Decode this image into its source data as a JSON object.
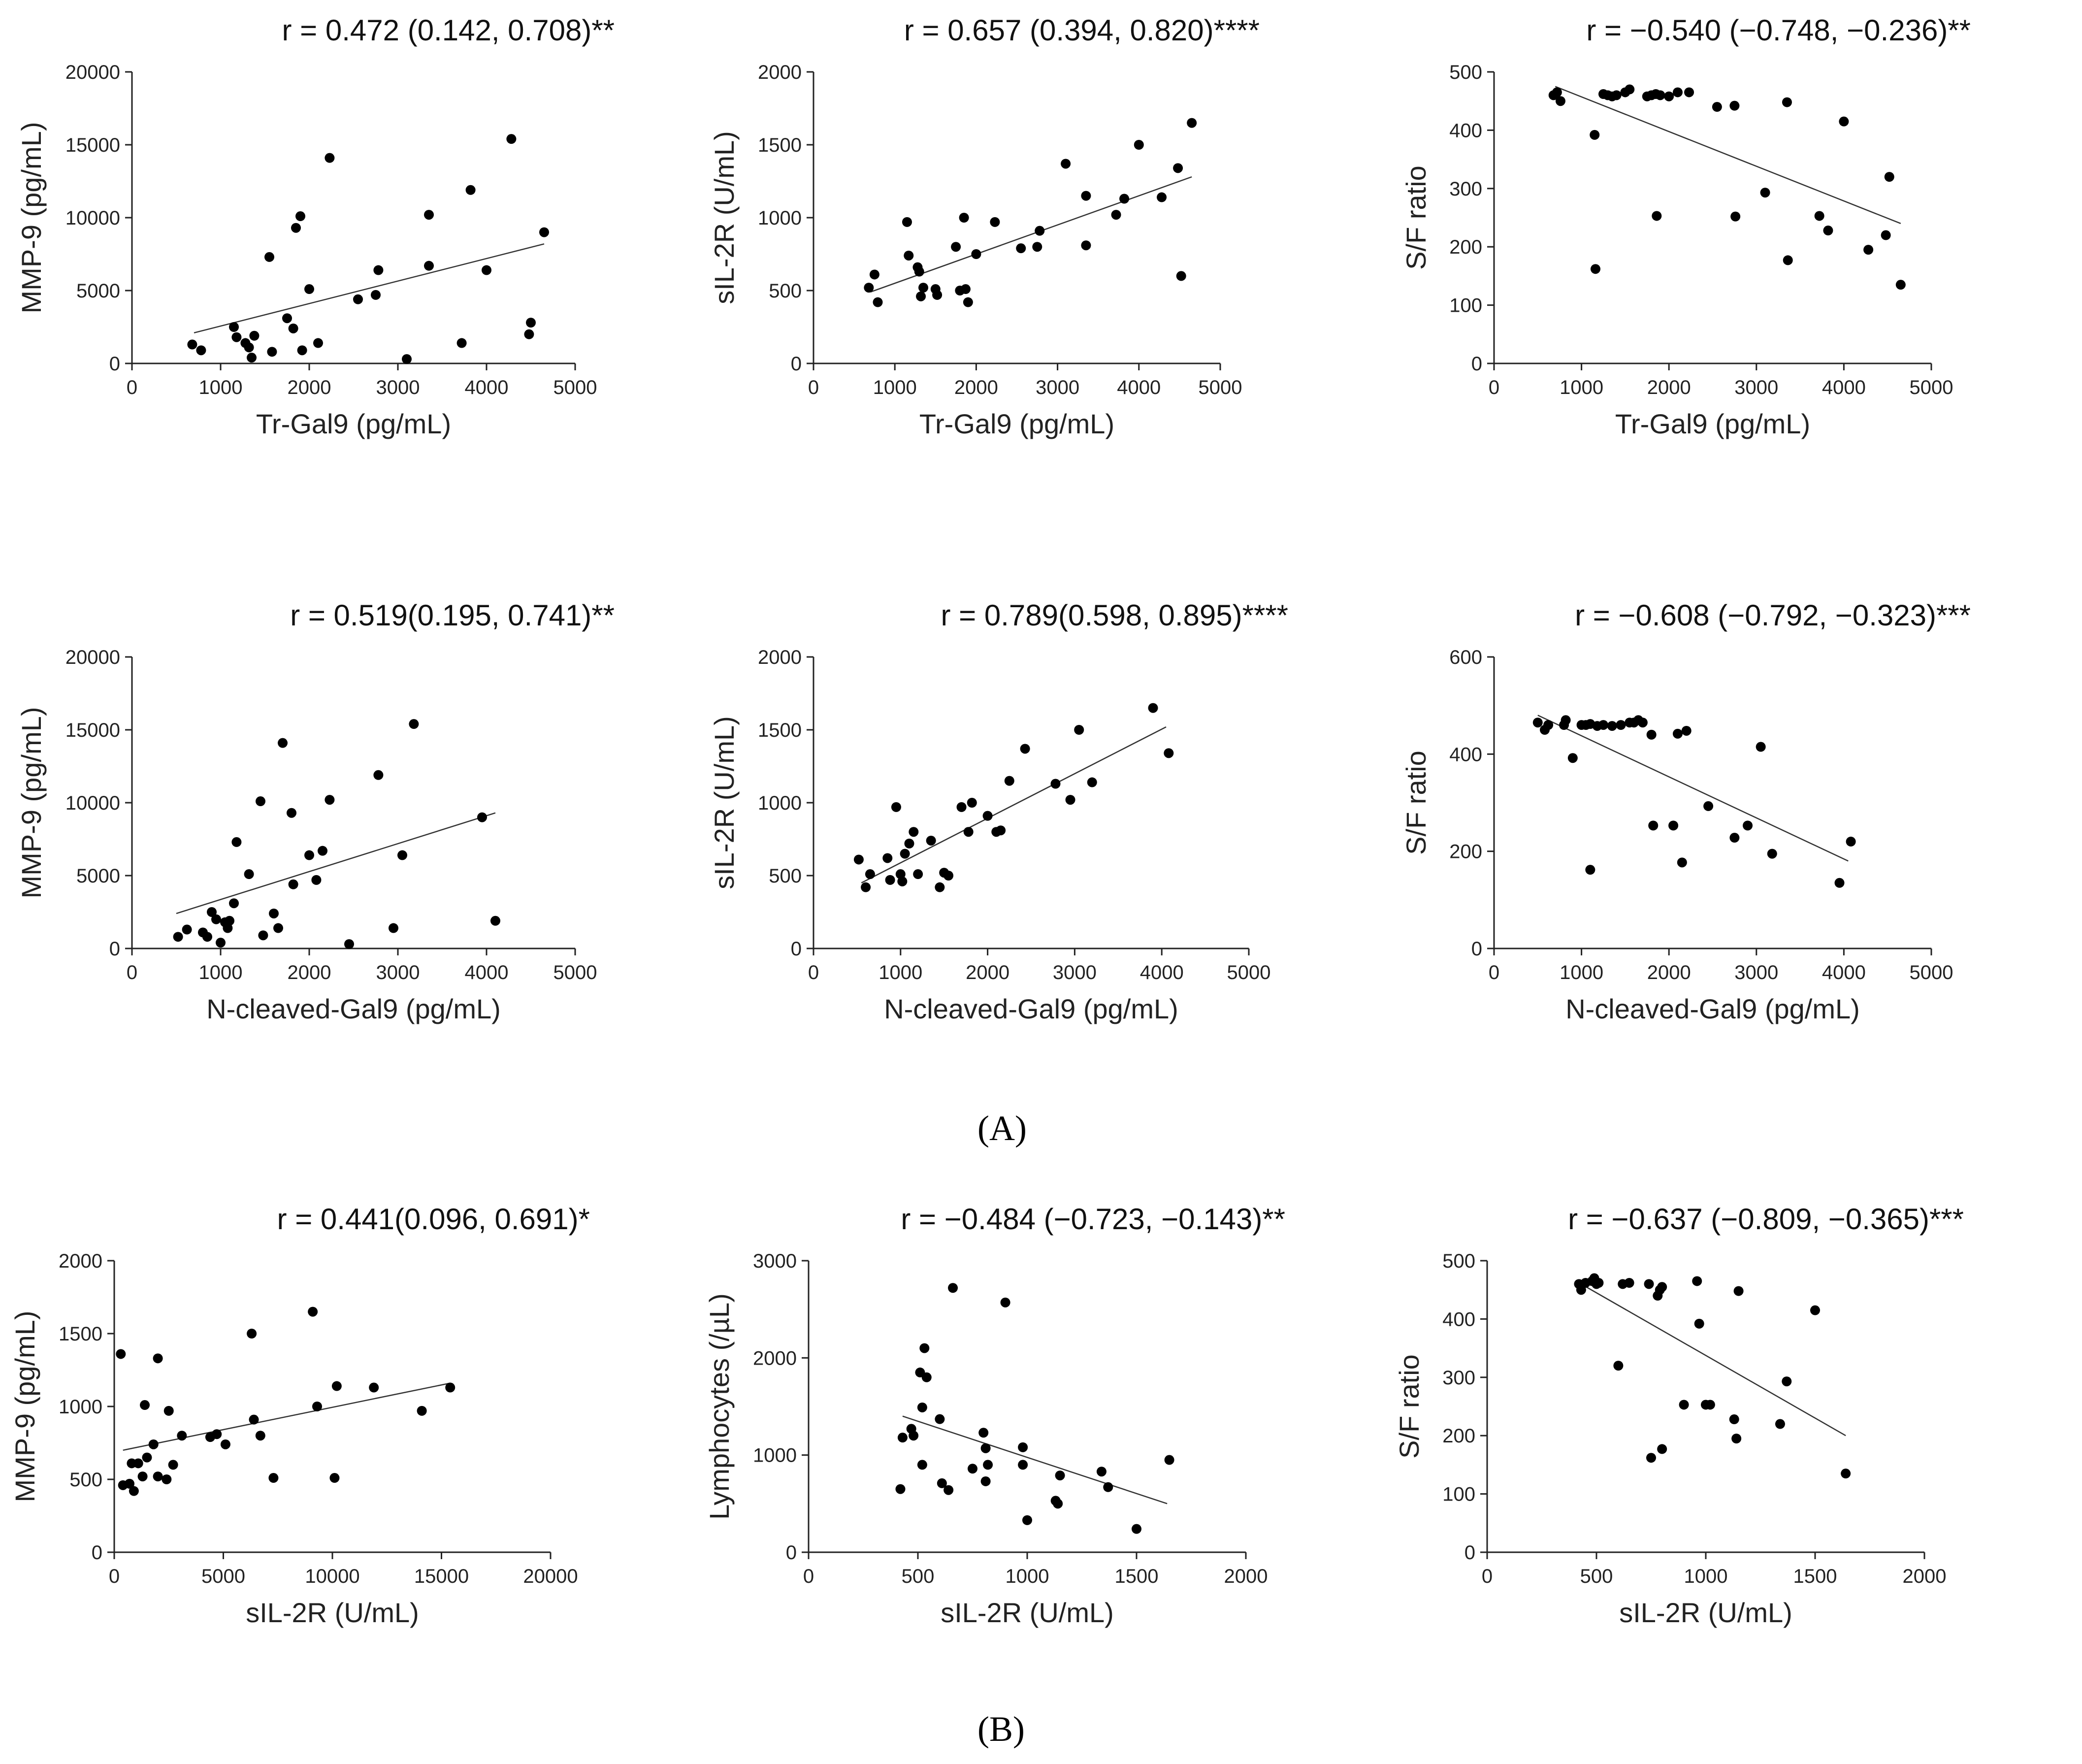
{
  "panel_labels": {
    "a": "(A)",
    "b": "(B)"
  },
  "chart_data": [
    {
      "id": "a1",
      "type": "scatter",
      "title": "r = 0.472 (0.142, 0.708)**",
      "xlabel": "Tr-Gal9 (pg/mL)",
      "ylabel": "MMP-9 (pg/mL)",
      "xlim": [
        0,
        5000
      ],
      "ylim": [
        0,
        20000
      ],
      "xticks": [
        0,
        1000,
        2000,
        3000,
        4000,
        5000
      ],
      "yticks": [
        0,
        5000,
        10000,
        15000,
        20000
      ],
      "fit": [
        [
          700,
          2100
        ],
        [
          4650,
          8200
        ]
      ],
      "points": [
        [
          680,
          1300
        ],
        [
          780,
          900
        ],
        [
          1150,
          2500
        ],
        [
          1180,
          1800
        ],
        [
          1280,
          1400
        ],
        [
          1320,
          1100
        ],
        [
          1350,
          400
        ],
        [
          1380,
          1900
        ],
        [
          1550,
          7300
        ],
        [
          1580,
          800
        ],
        [
          1750,
          3100
        ],
        [
          1820,
          2400
        ],
        [
          1850,
          9300
        ],
        [
          1900,
          10100
        ],
        [
          1920,
          900
        ],
        [
          2000,
          5100
        ],
        [
          2100,
          1400
        ],
        [
          2230,
          14100
        ],
        [
          2550,
          4400
        ],
        [
          2750,
          4700
        ],
        [
          2780,
          6400
        ],
        [
          3100,
          300
        ],
        [
          3350,
          10200
        ],
        [
          3350,
          6700
        ],
        [
          3720,
          1400
        ],
        [
          3820,
          11900
        ],
        [
          4000,
          6400
        ],
        [
          4280,
          15400
        ],
        [
          4480,
          2000
        ],
        [
          4500,
          2800
        ],
        [
          4650,
          9000
        ]
      ]
    },
    {
      "id": "a2",
      "type": "scatter",
      "title": "r = 0.657 (0.394, 0.820)****",
      "xlabel": "Tr-Gal9 (pg/mL)",
      "ylabel": "sIL-2R (U/mL)",
      "xlim": [
        0,
        5000
      ],
      "ylim": [
        0,
        2000
      ],
      "xticks": [
        0,
        1000,
        2000,
        3000,
        4000,
        5000
      ],
      "yticks": [
        0,
        500,
        1000,
        1500,
        2000
      ],
      "fit": [
        [
          700,
          490
        ],
        [
          4650,
          1280
        ]
      ],
      "points": [
        [
          680,
          520
        ],
        [
          750,
          610
        ],
        [
          790,
          420
        ],
        [
          1150,
          970
        ],
        [
          1170,
          740
        ],
        [
          1280,
          660
        ],
        [
          1300,
          630
        ],
        [
          1320,
          460
        ],
        [
          1350,
          520
        ],
        [
          1500,
          510
        ],
        [
          1520,
          470
        ],
        [
          1750,
          800
        ],
        [
          1800,
          500
        ],
        [
          1850,
          1000
        ],
        [
          1870,
          510
        ],
        [
          1900,
          420
        ],
        [
          2000,
          750
        ],
        [
          2230,
          970
        ],
        [
          2550,
          790
        ],
        [
          2750,
          800
        ],
        [
          2780,
          910
        ],
        [
          3100,
          1370
        ],
        [
          3350,
          810
        ],
        [
          3350,
          1150
        ],
        [
          3720,
          1020
        ],
        [
          3820,
          1130
        ],
        [
          4000,
          1500
        ],
        [
          4280,
          1140
        ],
        [
          4480,
          1340
        ],
        [
          4520,
          600
        ],
        [
          4650,
          1650
        ]
      ]
    },
    {
      "id": "a3",
      "type": "scatter",
      "title": "r = −0.540 (−0.748, −0.236)**",
      "xlabel": "Tr-Gal9 (pg/mL)",
      "ylabel": "S/F ratio",
      "xlim": [
        0,
        5000
      ],
      "ylim": [
        0,
        500
      ],
      "xticks": [
        0,
        1000,
        2000,
        3000,
        4000,
        5000
      ],
      "yticks": [
        0,
        100,
        200,
        300,
        400,
        500
      ],
      "fit": [
        [
          700,
          475
        ],
        [
          4650,
          240
        ]
      ],
      "points": [
        [
          680,
          460
        ],
        [
          720,
          465
        ],
        [
          760,
          450
        ],
        [
          1150,
          392
        ],
        [
          1160,
          162
        ],
        [
          1250,
          462
        ],
        [
          1300,
          460
        ],
        [
          1350,
          458
        ],
        [
          1400,
          460
        ],
        [
          1500,
          465
        ],
        [
          1550,
          470
        ],
        [
          1750,
          458
        ],
        [
          1800,
          460
        ],
        [
          1850,
          462
        ],
        [
          1860,
          253
        ],
        [
          1900,
          460
        ],
        [
          2000,
          458
        ],
        [
          2100,
          465
        ],
        [
          2230,
          465
        ],
        [
          2550,
          440
        ],
        [
          2750,
          442
        ],
        [
          2760,
          252
        ],
        [
          3100,
          293
        ],
        [
          3350,
          448
        ],
        [
          3360,
          177
        ],
        [
          3720,
          253
        ],
        [
          3820,
          228
        ],
        [
          4000,
          415
        ],
        [
          4280,
          195
        ],
        [
          4480,
          220
        ],
        [
          4520,
          320
        ],
        [
          4650,
          135
        ]
      ]
    },
    {
      "id": "a4",
      "type": "scatter",
      "title": "r = 0.519(0.195, 0.741)**",
      "xlabel": "N-cleaved-Gal9 (pg/mL)",
      "ylabel": "MMP-9 (pg/mL)",
      "xlim": [
        0,
        5000
      ],
      "ylim": [
        0,
        20000
      ],
      "xticks": [
        0,
        1000,
        2000,
        3000,
        4000,
        5000
      ],
      "yticks": [
        0,
        5000,
        10000,
        15000,
        20000
      ],
      "fit": [
        [
          500,
          2400
        ],
        [
          4100,
          9300
        ]
      ],
      "points": [
        [
          520,
          800
        ],
        [
          620,
          1300
        ],
        [
          800,
          1100
        ],
        [
          850,
          800
        ],
        [
          900,
          2500
        ],
        [
          950,
          2000
        ],
        [
          1000,
          400
        ],
        [
          1050,
          1800
        ],
        [
          1080,
          1400
        ],
        [
          1100,
          1900
        ],
        [
          1150,
          3100
        ],
        [
          1180,
          7300
        ],
        [
          1320,
          5100
        ],
        [
          1450,
          10100
        ],
        [
          1480,
          900
        ],
        [
          1600,
          2400
        ],
        [
          1650,
          1400
        ],
        [
          1700,
          14100
        ],
        [
          1800,
          9300
        ],
        [
          1820,
          4400
        ],
        [
          2000,
          6400
        ],
        [
          2080,
          4700
        ],
        [
          2150,
          6700
        ],
        [
          2230,
          10200
        ],
        [
          2450,
          300
        ],
        [
          2780,
          11900
        ],
        [
          2950,
          1400
        ],
        [
          3050,
          6400
        ],
        [
          3180,
          15400
        ],
        [
          3950,
          9000
        ],
        [
          4100,
          1900
        ]
      ]
    },
    {
      "id": "a5",
      "type": "scatter",
      "title": "r = 0.789(0.598, 0.895)****",
      "xlabel": "N-cleaved-Gal9 (pg/mL)",
      "ylabel": "sIL-2R (U/mL)",
      "xlim": [
        0,
        5000
      ],
      "ylim": [
        0,
        2000
      ],
      "xticks": [
        0,
        1000,
        2000,
        3000,
        4000,
        5000
      ],
      "yticks": [
        0,
        500,
        1000,
        1500,
        2000
      ],
      "fit": [
        [
          550,
          450
        ],
        [
          4050,
          1520
        ]
      ],
      "points": [
        [
          520,
          610
        ],
        [
          600,
          420
        ],
        [
          650,
          510
        ],
        [
          850,
          620
        ],
        [
          880,
          470
        ],
        [
          950,
          970
        ],
        [
          1000,
          510
        ],
        [
          1020,
          460
        ],
        [
          1050,
          650
        ],
        [
          1100,
          720
        ],
        [
          1150,
          800
        ],
        [
          1200,
          510
        ],
        [
          1350,
          740
        ],
        [
          1450,
          420
        ],
        [
          1500,
          520
        ],
        [
          1550,
          500
        ],
        [
          1700,
          970
        ],
        [
          1780,
          800
        ],
        [
          1820,
          1000
        ],
        [
          2000,
          910
        ],
        [
          2100,
          800
        ],
        [
          2150,
          810
        ],
        [
          2250,
          1150
        ],
        [
          2430,
          1370
        ],
        [
          2780,
          1130
        ],
        [
          2950,
          1020
        ],
        [
          3050,
          1500
        ],
        [
          3200,
          1140
        ],
        [
          3900,
          1650
        ],
        [
          4080,
          1340
        ]
      ]
    },
    {
      "id": "a6",
      "type": "scatter",
      "title": "r = −0.608 (−0.792, −0.323)***",
      "xlabel": "N-cleaved-Gal9 (pg/mL)",
      "ylabel": "S/F ratio",
      "xlim": [
        0,
        5000
      ],
      "ylim": [
        0,
        600
      ],
      "xticks": [
        0,
        1000,
        2000,
        3000,
        4000,
        5000
      ],
      "yticks": [
        0,
        200,
        400,
        600
      ],
      "fit": [
        [
          500,
          480
        ],
        [
          4050,
          180
        ]
      ],
      "points": [
        [
          500,
          465
        ],
        [
          580,
          450
        ],
        [
          620,
          460
        ],
        [
          800,
          460
        ],
        [
          820,
          470
        ],
        [
          900,
          392
        ],
        [
          1000,
          460
        ],
        [
          1050,
          460
        ],
        [
          1100,
          462
        ],
        [
          1100,
          162
        ],
        [
          1180,
          458
        ],
        [
          1250,
          460
        ],
        [
          1350,
          458
        ],
        [
          1450,
          460
        ],
        [
          1550,
          465
        ],
        [
          1600,
          465
        ],
        [
          1650,
          470
        ],
        [
          1700,
          465
        ],
        [
          1800,
          440
        ],
        [
          1820,
          253
        ],
        [
          2050,
          253
        ],
        [
          2100,
          442
        ],
        [
          2150,
          177
        ],
        [
          2200,
          448
        ],
        [
          2450,
          293
        ],
        [
          2750,
          228
        ],
        [
          2900,
          253
        ],
        [
          3050,
          415
        ],
        [
          3180,
          195
        ],
        [
          3950,
          135
        ],
        [
          4080,
          220
        ]
      ]
    },
    {
      "id": "b1",
      "type": "scatter",
      "title": "r = 0.441(0.096, 0.691)*",
      "xlabel": "sIL-2R (U/mL)",
      "ylabel": "MMP-9 (pg/mL)",
      "xlim": [
        0,
        20000
      ],
      "ylim": [
        0,
        2000
      ],
      "xticks": [
        0,
        5000,
        10000,
        15000,
        20000
      ],
      "yticks": [
        0,
        500,
        1000,
        1500,
        2000
      ],
      "fit": [
        [
          400,
          700
        ],
        [
          15400,
          1160
        ]
      ],
      "points": [
        [
          300,
          1360
        ],
        [
          400,
          460
        ],
        [
          700,
          470
        ],
        [
          800,
          610
        ],
        [
          900,
          420
        ],
        [
          1100,
          610
        ],
        [
          1300,
          520
        ],
        [
          1400,
          1010
        ],
        [
          1500,
          650
        ],
        [
          1800,
          740
        ],
        [
          2000,
          1330
        ],
        [
          2000,
          520
        ],
        [
          2400,
          500
        ],
        [
          2500,
          970
        ],
        [
          2700,
          600
        ],
        [
          3100,
          800
        ],
        [
          4400,
          790
        ],
        [
          4700,
          810
        ],
        [
          5100,
          740
        ],
        [
          6300,
          1500
        ],
        [
          6400,
          910
        ],
        [
          6700,
          800
        ],
        [
          7300,
          510
        ],
        [
          9100,
          1650
        ],
        [
          9300,
          1000
        ],
        [
          10100,
          510
        ],
        [
          10200,
          1140
        ],
        [
          11900,
          1130
        ],
        [
          14100,
          970
        ],
        [
          15400,
          1130
        ]
      ]
    },
    {
      "id": "b2",
      "type": "scatter",
      "title": "r = −0.484 (−0.723, −0.143)**",
      "xlabel": "sIL-2R (U/mL)",
      "ylabel": "Lymphocytes (/µL)",
      "xlim": [
        0,
        2000
      ],
      "ylim": [
        0,
        3000
      ],
      "xticks": [
        0,
        500,
        1000,
        1500,
        2000
      ],
      "yticks": [
        0,
        1000,
        2000,
        3000
      ],
      "fit": [
        [
          430,
          1400
        ],
        [
          1640,
          500
        ]
      ],
      "points": [
        [
          420,
          650
        ],
        [
          430,
          1180
        ],
        [
          470,
          1270
        ],
        [
          480,
          1200
        ],
        [
          510,
          1850
        ],
        [
          520,
          900
        ],
        [
          520,
          1490
        ],
        [
          530,
          2100
        ],
        [
          540,
          1800
        ],
        [
          600,
          1370
        ],
        [
          610,
          710
        ],
        [
          640,
          640
        ],
        [
          660,
          2720
        ],
        [
          750,
          860
        ],
        [
          800,
          1230
        ],
        [
          810,
          730
        ],
        [
          810,
          1070
        ],
        [
          820,
          900
        ],
        [
          900,
          2570
        ],
        [
          980,
          900
        ],
        [
          980,
          1080
        ],
        [
          1000,
          330
        ],
        [
          1130,
          530
        ],
        [
          1140,
          500
        ],
        [
          1150,
          790
        ],
        [
          1340,
          830
        ],
        [
          1370,
          670
        ],
        [
          1500,
          240
        ],
        [
          1650,
          950
        ]
      ]
    },
    {
      "id": "b3",
      "type": "scatter",
      "title": "r = −0.637 (−0.809, −0.365)***",
      "xlabel": "sIL-2R (U/mL)",
      "ylabel": "S/F ratio",
      "xlim": [
        0,
        2000
      ],
      "ylim": [
        0,
        500
      ],
      "xticks": [
        0,
        500,
        1000,
        1500,
        2000
      ],
      "yticks": [
        0,
        100,
        200,
        300,
        400,
        500
      ],
      "fit": [
        [
          430,
          460
        ],
        [
          1640,
          200
        ]
      ],
      "points": [
        [
          420,
          460
        ],
        [
          430,
          450
        ],
        [
          450,
          462
        ],
        [
          480,
          465
        ],
        [
          490,
          470
        ],
        [
          500,
          460
        ],
        [
          510,
          462
        ],
        [
          600,
          320
        ],
        [
          620,
          460
        ],
        [
          650,
          462
        ],
        [
          740,
          460
        ],
        [
          750,
          162
        ],
        [
          780,
          440
        ],
        [
          790,
          450
        ],
        [
          800,
          177
        ],
        [
          800,
          455
        ],
        [
          900,
          253
        ],
        [
          960,
          465
        ],
        [
          970,
          392
        ],
        [
          1000,
          253
        ],
        [
          1020,
          253
        ],
        [
          1130,
          228
        ],
        [
          1140,
          195
        ],
        [
          1150,
          448
        ],
        [
          1340,
          220
        ],
        [
          1370,
          293
        ],
        [
          1500,
          415
        ],
        [
          1640,
          135
        ]
      ]
    }
  ]
}
